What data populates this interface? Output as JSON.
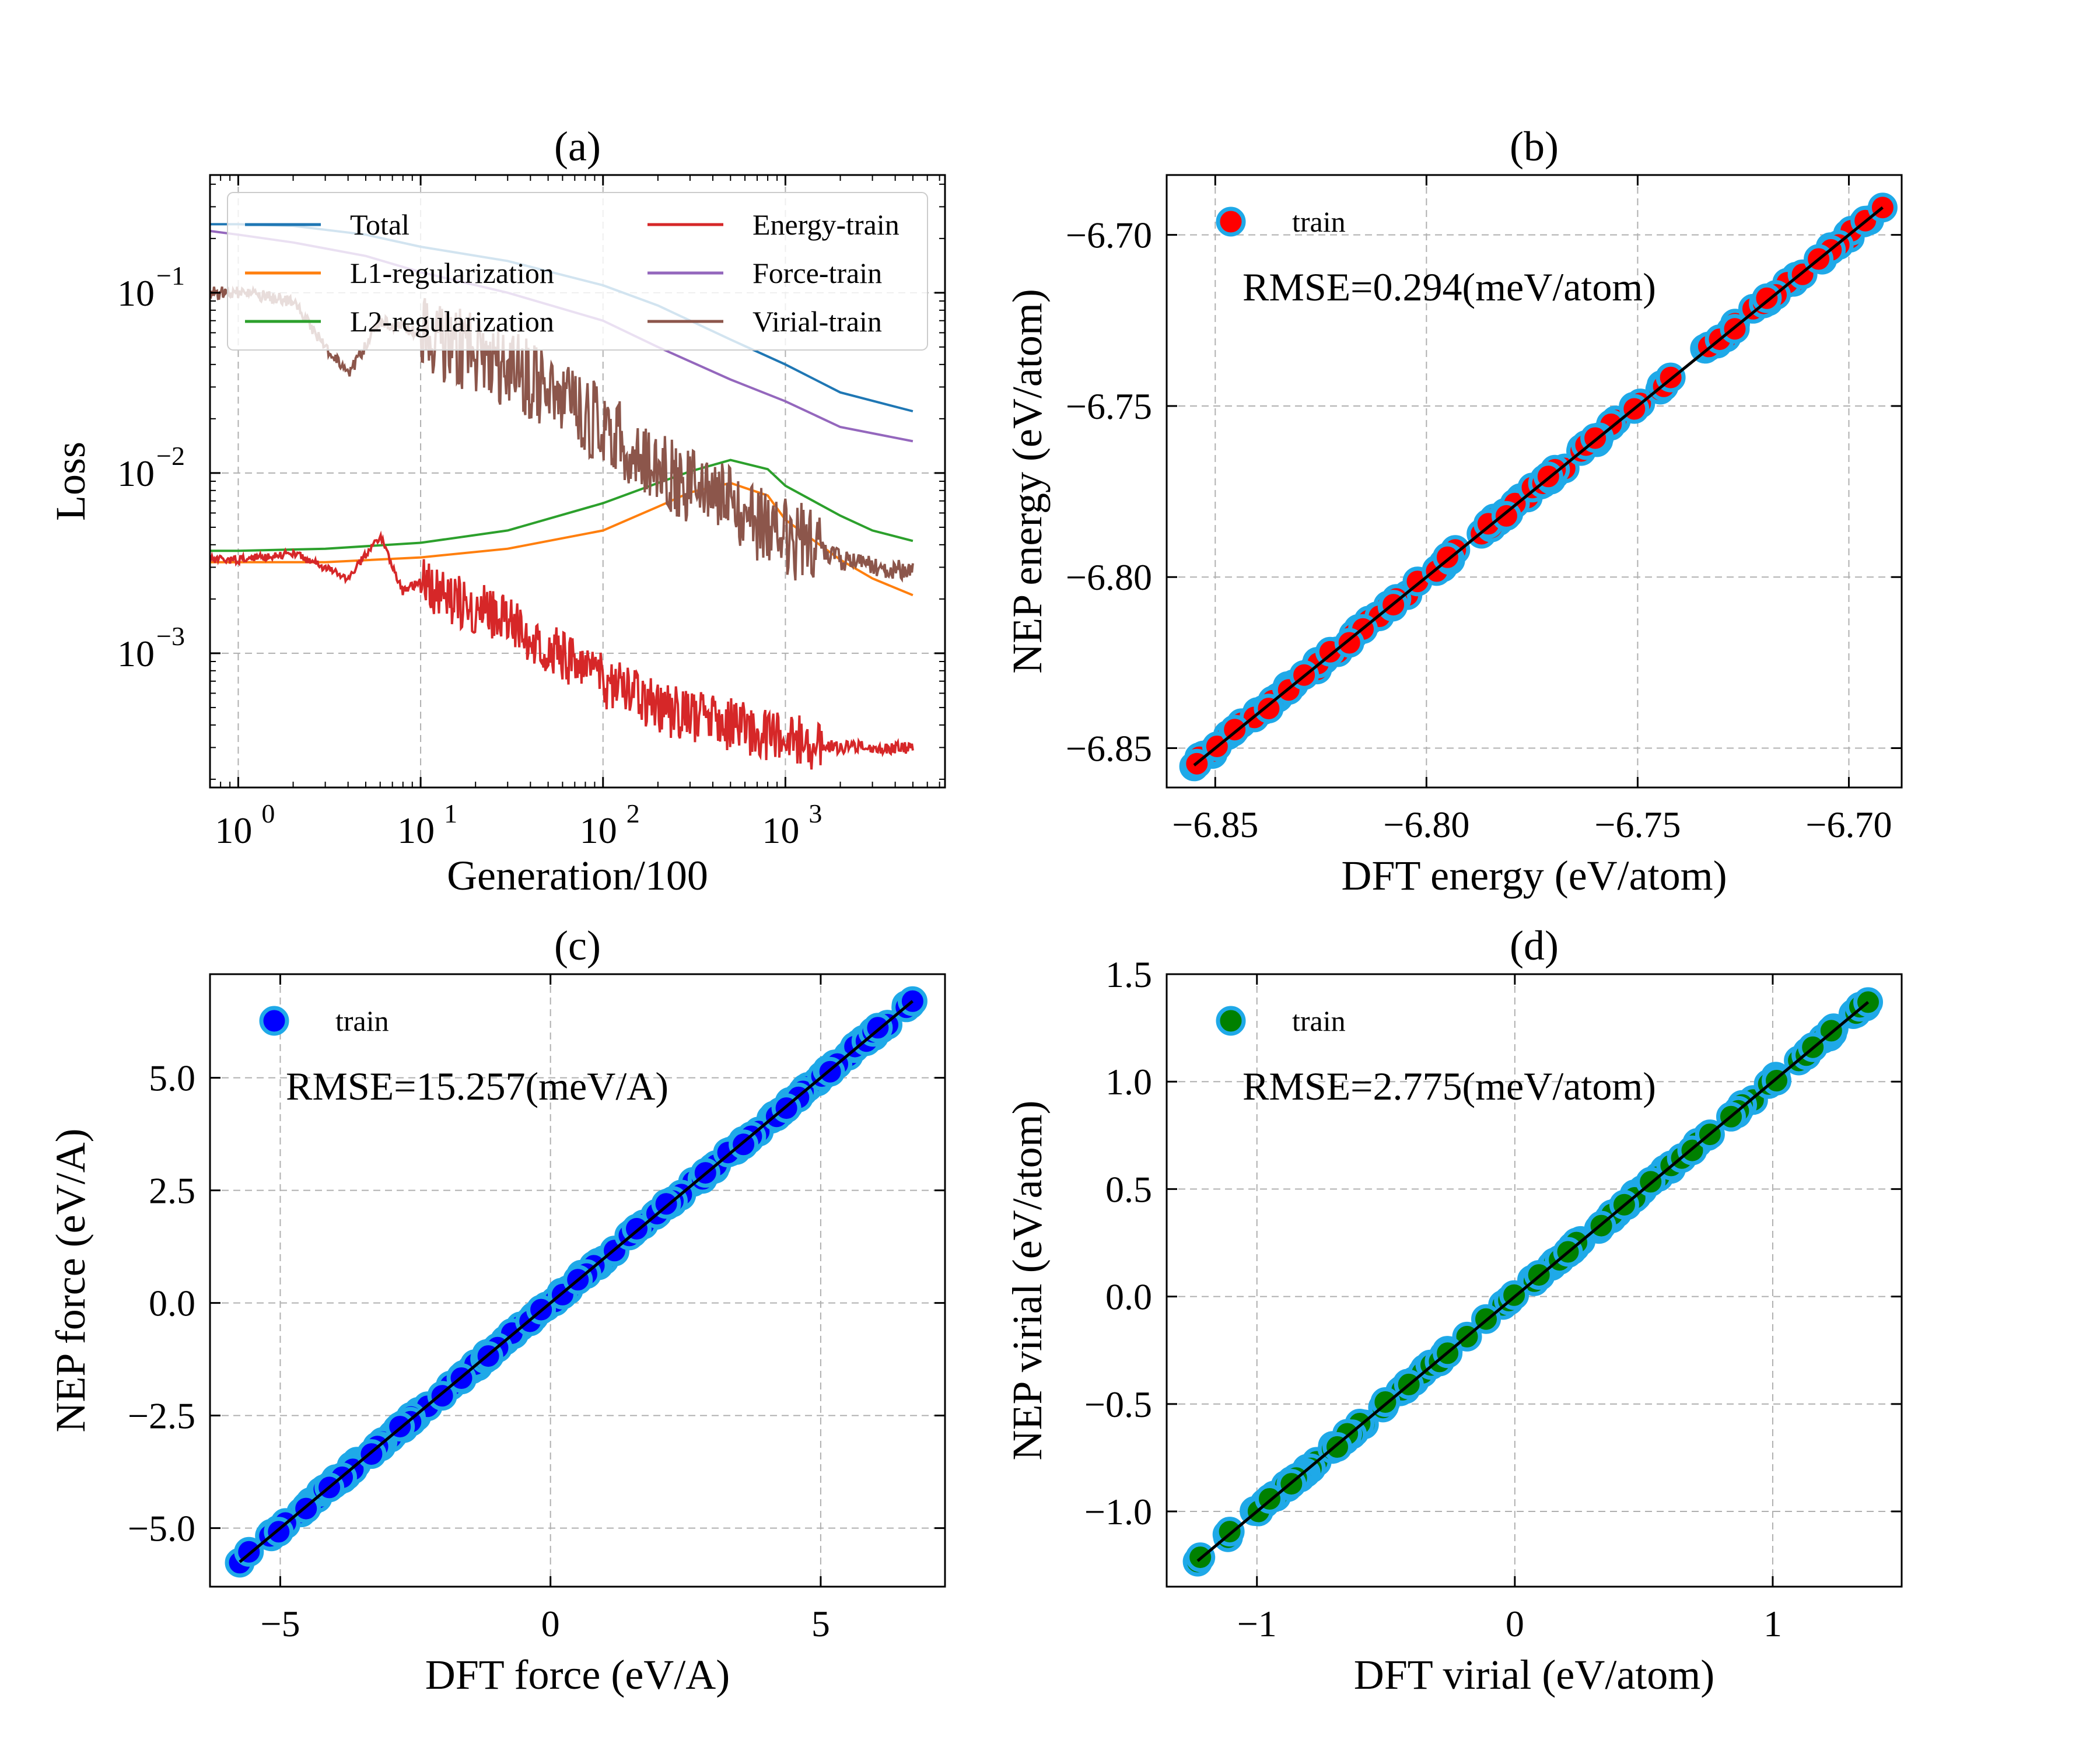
{
  "chart_data": [
    {
      "id": "a",
      "type": "line",
      "title": "(a)",
      "xlabel": "Generation/100",
      "ylabel": "Loss",
      "xscale": "log",
      "yscale": "log",
      "xlim": [
        0.7,
        7500
      ],
      "ylim": [
        0.00018,
        0.45
      ],
      "grid": true,
      "legend_position": "top",
      "x_ticks": [
        {
          "value": 1,
          "base": "10",
          "exp": "0"
        },
        {
          "value": 10,
          "base": "10",
          "exp": "1"
        },
        {
          "value": 100,
          "base": "10",
          "exp": "2"
        },
        {
          "value": 1000,
          "base": "10",
          "exp": "3"
        }
      ],
      "y_ticks": [
        {
          "value": 0.001,
          "base": "10",
          "exp": "−3"
        },
        {
          "value": 0.01,
          "base": "10",
          "exp": "−2"
        },
        {
          "value": 0.1,
          "base": "10",
          "exp": "−1"
        }
      ],
      "series": [
        {
          "name": "Total",
          "color": "#1f77b4",
          "x": [
            0.7,
            1,
            2,
            5,
            10,
            30,
            100,
            200,
            500,
            1000,
            2000,
            5000
          ],
          "y": [
            0.24,
            0.24,
            0.235,
            0.21,
            0.18,
            0.15,
            0.11,
            0.085,
            0.055,
            0.04,
            0.028,
            0.022
          ]
        },
        {
          "name": "L1-regularization",
          "color": "#ff7f0e",
          "x": [
            0.7,
            1,
            3,
            10,
            30,
            100,
            200,
            300,
            500,
            800,
            1000,
            2000,
            3000,
            5000
          ],
          "y": [
            0.0032,
            0.0032,
            0.0032,
            0.0034,
            0.0038,
            0.0048,
            0.0065,
            0.0078,
            0.0088,
            0.0075,
            0.0055,
            0.0033,
            0.0026,
            0.0021
          ]
        },
        {
          "name": "L2-regularization",
          "color": "#2ca02c",
          "x": [
            0.7,
            1,
            3,
            10,
            30,
            100,
            200,
            300,
            500,
            800,
            1000,
            2000,
            3000,
            5000
          ],
          "y": [
            0.0037,
            0.0037,
            0.0038,
            0.0041,
            0.0048,
            0.0068,
            0.0088,
            0.0102,
            0.0118,
            0.0105,
            0.0085,
            0.0058,
            0.0048,
            0.0042
          ]
        },
        {
          "name": "Energy-train",
          "color": "#d62728",
          "x": [
            0.7,
            1,
            2,
            4,
            6,
            8,
            10,
            15,
            20,
            30,
            50,
            100,
            200,
            300,
            500,
            1000,
            2000,
            5000
          ],
          "y": [
            0.0033,
            0.0033,
            0.0036,
            0.0026,
            0.0045,
            0.0022,
            0.0025,
            0.002,
            0.0018,
            0.0015,
            0.0011,
            0.0007,
            0.0005,
            0.00045,
            0.0004,
            0.00033,
            0.0003,
            0.0003
          ],
          "noise": 0.3
        },
        {
          "name": "Force-train",
          "color": "#9467bd",
          "x": [
            0.7,
            1,
            2,
            5,
            10,
            30,
            100,
            200,
            500,
            1000,
            2000,
            5000
          ],
          "y": [
            0.22,
            0.21,
            0.19,
            0.16,
            0.13,
            0.1,
            0.07,
            0.05,
            0.033,
            0.025,
            0.018,
            0.015
          ]
        },
        {
          "name": "Virial-train",
          "color": "#8c564b",
          "x": [
            0.7,
            1,
            2,
            3,
            4,
            6,
            10,
            20,
            50,
            100,
            200,
            500,
            1000,
            2000,
            5000
          ],
          "y": [
            0.1,
            0.1,
            0.09,
            0.05,
            0.035,
            0.07,
            0.06,
            0.045,
            0.03,
            0.018,
            0.011,
            0.0065,
            0.0045,
            0.0033,
            0.0028
          ],
          "noise": 0.45
        }
      ]
    },
    {
      "id": "b",
      "type": "scatter",
      "title": "(b)",
      "xlabel": "DFT energy (eV/atom)",
      "ylabel": "NEP energy (eV/atom)",
      "xlim": [
        -6.8615,
        -6.6875
      ],
      "ylim": [
        -6.8615,
        -6.6825
      ],
      "x_ticks": [
        -6.85,
        -6.8,
        -6.75,
        -6.7
      ],
      "y_ticks": [
        -6.85,
        -6.8,
        -6.75,
        -6.7
      ],
      "tick_format": "fixed2",
      "grid": true,
      "legend": "train",
      "legend_position": "top-left",
      "annotation": "RMSE=0.294(meV/atom)",
      "marker_color": "#ff0000",
      "edge_color": "#1fa9e8",
      "range": [
        -6.855,
        -6.692
      ],
      "scatter_width": 0.0011,
      "point_count": 120
    },
    {
      "id": "c",
      "type": "scatter",
      "title": "(c)",
      "xlabel": "DFT force (eV/A)",
      "ylabel": "NEP force (eV/A)",
      "xlim": [
        -6.3,
        7.3
      ],
      "ylim": [
        -6.3,
        7.3
      ],
      "x_ticks": [
        -5,
        0,
        5
      ],
      "y_ticks": [
        -5.0,
        -2.5,
        0.0,
        2.5,
        5.0
      ],
      "x_tick_format": "int",
      "tick_format": "fixed1",
      "grid": true,
      "legend": "train",
      "legend_position": "top-left",
      "annotation": "RMSE=15.257(meV/A)",
      "marker_color": "#0000ff",
      "edge_color": "#1fa9e8",
      "range": [
        -5.75,
        6.7
      ],
      "scatter_width": 0.06,
      "point_count": 150
    },
    {
      "id": "d",
      "type": "scatter",
      "title": "(d)",
      "xlabel": "DFT virial (eV/atom)",
      "ylabel": "NEP virial (eV/atom)",
      "xlim": [
        -1.35,
        1.5
      ],
      "ylim": [
        -1.35,
        1.5
      ],
      "x_ticks": [
        -1,
        0,
        1
      ],
      "y_ticks": [
        -1.0,
        -0.5,
        0.0,
        0.5,
        1.0,
        1.5
      ],
      "x_tick_format": "int",
      "tick_format": "fixed1",
      "grid": true,
      "legend": "train",
      "legend_position": "top-left",
      "annotation": "RMSE=2.775(meV/atom)",
      "marker_color": "#008000",
      "edge_color": "#1fa9e8",
      "range": [
        -1.23,
        1.37
      ],
      "scatter_width": 0.012,
      "point_count": 120
    }
  ]
}
